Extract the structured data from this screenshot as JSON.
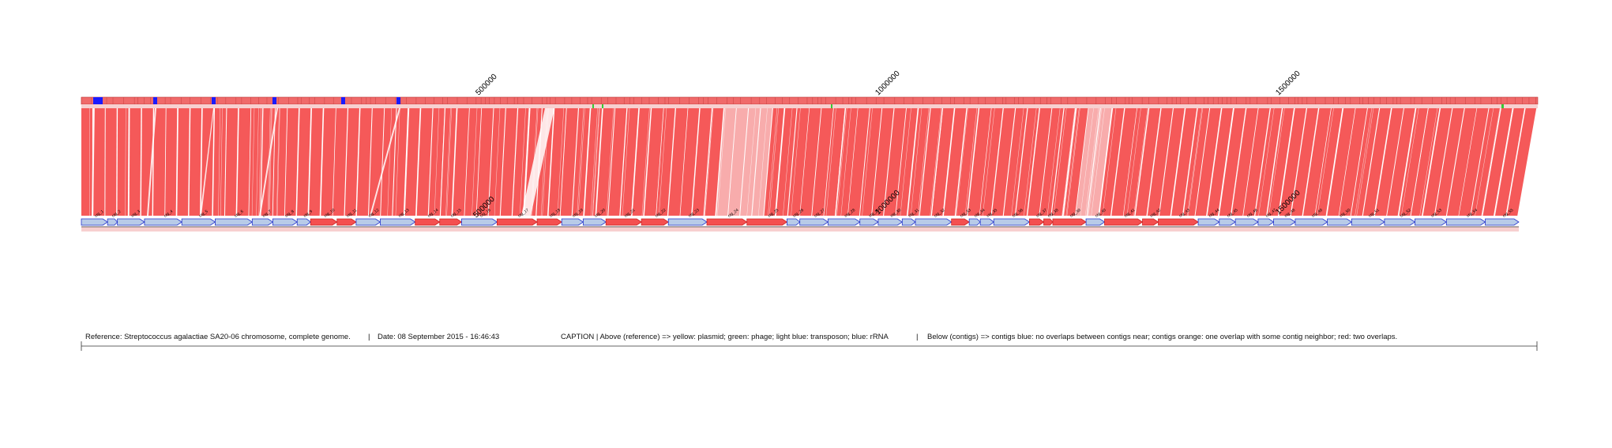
{
  "reference_axis": {
    "tick_labels": [
      "500000",
      "1000000",
      "1500000"
    ],
    "highlight_colors": {
      "reference_track": "#f06a6a",
      "match": "#f45050",
      "rRNA": "#1a1aff",
      "phage": "#33cc33"
    }
  },
  "contig_axis": {
    "tick_labels": [
      "500000",
      "1000000",
      "1500000"
    ]
  },
  "contigs": [
    {
      "label": "ctg_1",
      "class": "blue"
    },
    {
      "label": "ctg_2",
      "class": "blue"
    },
    {
      "label": "ctg_3",
      "class": "blue"
    },
    {
      "label": "ctg_4",
      "class": "blue"
    },
    {
      "label": "ctg_5",
      "class": "blue"
    },
    {
      "label": "ctg_6",
      "class": "blue"
    },
    {
      "label": "ctg_7",
      "class": "blue"
    },
    {
      "label": "ctg_8",
      "class": "blue"
    },
    {
      "label": "ctg_9",
      "class": "blue"
    },
    {
      "label": "ctg_10",
      "class": "red"
    },
    {
      "label": "ctg_11",
      "class": "red"
    },
    {
      "label": "ctg_12",
      "class": "blue"
    },
    {
      "label": "ctg_13",
      "class": "blue"
    },
    {
      "label": "ctg_14",
      "class": "red"
    },
    {
      "label": "ctg_15",
      "class": "red"
    },
    {
      "label": "ctg_16",
      "class": "blue"
    },
    {
      "label": "ctg_17",
      "class": "red"
    },
    {
      "label": "ctg_18",
      "class": "red"
    },
    {
      "label": "ctg_19",
      "class": "blue"
    },
    {
      "label": "ctg_20",
      "class": "blue"
    },
    {
      "label": "ctg_21",
      "class": "red"
    },
    {
      "label": "ctg_22",
      "class": "red"
    },
    {
      "label": "ctg_23",
      "class": "blue"
    },
    {
      "label": "ctg_24",
      "class": "red"
    },
    {
      "label": "ctg_25",
      "class": "red"
    },
    {
      "label": "ctg_26",
      "class": "blue"
    },
    {
      "label": "ctg_27",
      "class": "blue"
    },
    {
      "label": "ctg_28",
      "class": "blue"
    },
    {
      "label": "ctg_29",
      "class": "blue"
    },
    {
      "label": "ctg_30",
      "class": "blue"
    },
    {
      "label": "ctg_31",
      "class": "blue"
    },
    {
      "label": "ctg_32",
      "class": "blue"
    },
    {
      "label": "ctg_33",
      "class": "red"
    },
    {
      "label": "ctg_34",
      "class": "blue"
    },
    {
      "label": "ctg_35",
      "class": "blue"
    },
    {
      "label": "ctg_36",
      "class": "blue"
    },
    {
      "label": "ctg_37",
      "class": "red"
    },
    {
      "label": "ctg_38",
      "class": "red"
    },
    {
      "label": "ctg_39",
      "class": "red"
    },
    {
      "label": "ctg_40",
      "class": "blue"
    },
    {
      "label": "ctg_41",
      "class": "red"
    },
    {
      "label": "ctg_42",
      "class": "red"
    },
    {
      "label": "ctg_43",
      "class": "red"
    },
    {
      "label": "ctg_44",
      "class": "blue"
    },
    {
      "label": "ctg_45",
      "class": "blue"
    },
    {
      "label": "ctg_46",
      "class": "blue"
    },
    {
      "label": "ctg_47",
      "class": "blue"
    },
    {
      "label": "ctg_48",
      "class": "blue"
    },
    {
      "label": "ctg_49",
      "class": "blue"
    },
    {
      "label": "ctg_50",
      "class": "blue"
    },
    {
      "label": "ctg_51",
      "class": "blue"
    },
    {
      "label": "ctg_52",
      "class": "blue"
    },
    {
      "label": "ctg_53",
      "class": "blue"
    },
    {
      "label": "ctg_54",
      "class": "blue"
    },
    {
      "label": "ctg_55",
      "class": "blue"
    }
  ],
  "caption": {
    "reference": "Reference: Streptococcus agalactiae SA20-06 chromosome, complete genome.",
    "separator1": "|",
    "date": "Date: 08 September 2015 - 16:46:43",
    "caption_above": "CAPTION | Above (reference) => yellow: plasmid; green: phage; light blue: transposon; blue: rRNA",
    "separator2": "|",
    "caption_below": "Below (contigs) => contigs blue: no overlaps between contigs near; contigs orange: one overlap with some contig neighbor; red: two overlaps."
  },
  "colors": {
    "contig_blue": "#b8cbe8",
    "contig_blue_stroke": "#2233cc",
    "contig_red": "#f45050",
    "contig_orange": "#ee6a4a",
    "link": "#f45050",
    "link_light": "#f8a8a8"
  }
}
